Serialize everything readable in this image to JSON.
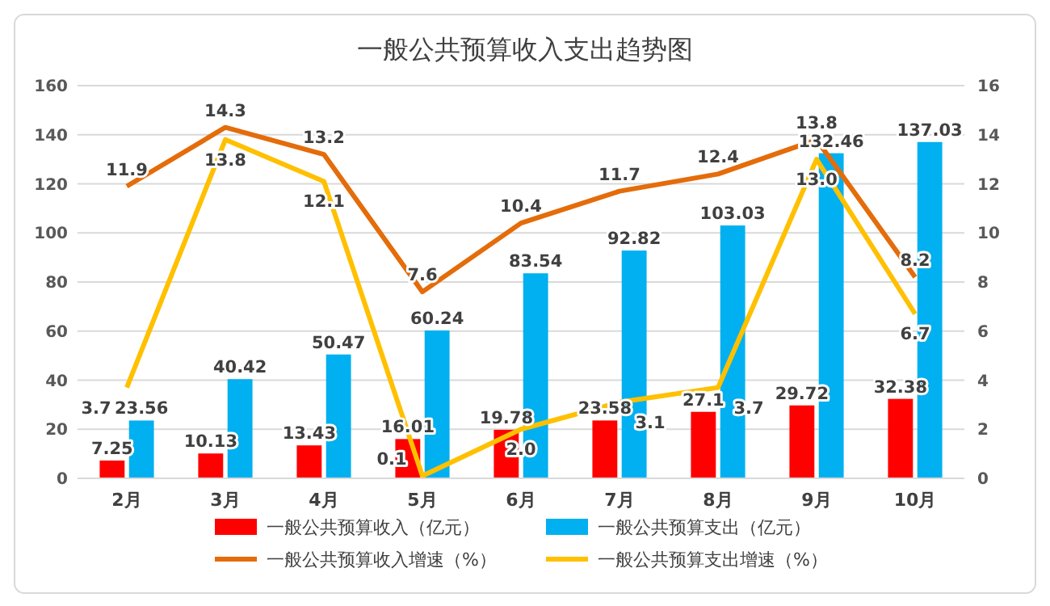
{
  "chart_data": {
    "type": "bar",
    "title": "一般公共预算收入支出趋势图",
    "categories": [
      "2月",
      "3月",
      "4月",
      "5月",
      "6月",
      "7月",
      "8月",
      "9月",
      "10月"
    ],
    "series": [
      {
        "name": "一般公共预算收入（亿元）",
        "color": "#ff0000",
        "values": [
          7.25,
          10.13,
          13.43,
          16.01,
          19.78,
          23.58,
          27.1,
          29.72,
          32.38
        ],
        "value_labels": [
          "7.25",
          "10.13",
          "13.43",
          "16.01",
          "19.78",
          "23.58",
          "27.1",
          "29.72",
          "32.38"
        ]
      },
      {
        "name": "一般公共预算支出（亿元）",
        "color": "#00b0f0",
        "values": [
          23.56,
          40.42,
          50.47,
          60.24,
          83.54,
          92.82,
          103.03,
          132.46,
          137.03
        ],
        "value_labels": [
          "23.56",
          "40.42",
          "50.47",
          "60.24",
          "83.54",
          "92.82",
          "103.03",
          "132.46",
          "137.03"
        ]
      },
      {
        "name": "一般公共预算收入增速（%）",
        "type": "line",
        "axis": "y2",
        "color": "#e46c0a",
        "values": [
          11.9,
          14.3,
          13.2,
          7.6,
          10.4,
          11.7,
          12.4,
          13.8,
          8.2
        ],
        "value_labels": [
          "11.9",
          "14.3",
          "13.2",
          "7.6",
          "10.4",
          "11.7",
          "12.4",
          "13.8",
          "8.2"
        ]
      },
      {
        "name": "一般公共预算支出增速（%）",
        "type": "line",
        "axis": "y2",
        "color": "#ffc000",
        "values": [
          3.7,
          13.8,
          12.1,
          0.1,
          2.0,
          3.1,
          3.7,
          13.0,
          6.7
        ],
        "value_labels": [
          "3.7",
          "13.8",
          "12.1",
          "0.1",
          "2.0",
          "3.1",
          "3.7",
          "13.0",
          "6.7"
        ]
      }
    ],
    "ylim": [
      0,
      160
    ],
    "yticks": [
      0,
      20,
      40,
      60,
      80,
      100,
      120,
      140,
      160
    ],
    "y2lim": [
      0,
      16
    ],
    "y2ticks": [
      0,
      2,
      4,
      6,
      8,
      10,
      12,
      14,
      16
    ],
    "grid": "y",
    "legend": "bottom",
    "marker": "none"
  }
}
